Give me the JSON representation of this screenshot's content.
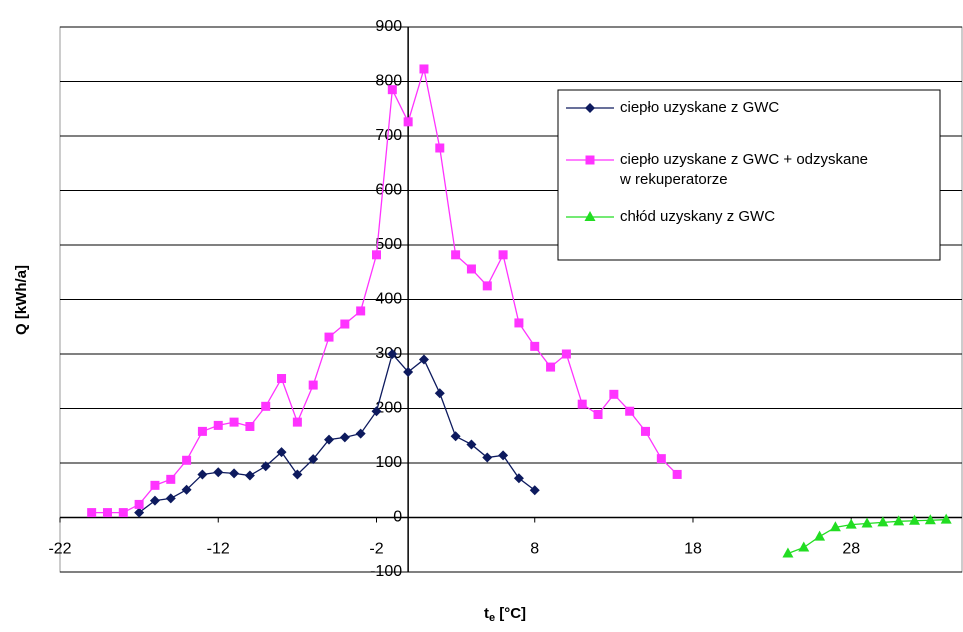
{
  "chart_data": {
    "type": "line",
    "y_label": "Q [kWh/a]",
    "x_label": "t",
    "x_label_sub": "e",
    "x_label_unit": " [°C]",
    "xlim": [
      -22,
      35
    ],
    "xticks": [
      -22,
      -12,
      -2,
      8,
      18,
      28
    ],
    "ylim": [
      -100,
      900
    ],
    "yticks": [
      -100,
      0,
      100,
      200,
      300,
      400,
      500,
      600,
      700,
      800,
      900
    ],
    "grid": true,
    "legend": "upper right",
    "series": [
      {
        "name": "ciepło uzyskane z GWC",
        "color": "#0d1a5e",
        "marker": "diamond",
        "x": [
          -17,
          -16,
          -15,
          -14,
          -13,
          -12,
          -11,
          -10,
          -9,
          -8,
          -7,
          -6,
          -5,
          -4,
          -3,
          -2,
          -1,
          0,
          1,
          2,
          3,
          4,
          5,
          6,
          7,
          8
        ],
        "values": [
          9,
          31,
          35,
          51,
          79,
          83,
          81,
          77,
          94,
          120,
          79,
          107,
          143,
          147,
          154,
          195,
          300,
          267,
          290,
          228,
          149,
          134,
          110,
          114,
          72,
          50
        ]
      },
      {
        "name": "ciepło uzyskane z GWC + odzyskane\nw rekuperatorze",
        "color": "#ff33ff",
        "marker": "square",
        "x": [
          -20,
          -19,
          -18,
          -17,
          -16,
          -15,
          -14,
          -13,
          -12,
          -11,
          -10,
          -9,
          -8,
          -7,
          -6,
          -5,
          -4,
          -3,
          -2,
          -1,
          0,
          1,
          2,
          3,
          4,
          5,
          6,
          7,
          8,
          9,
          10,
          11,
          12,
          13,
          14,
          15,
          16,
          17
        ],
        "values": [
          9,
          9,
          9,
          24,
          59,
          70,
          105,
          158,
          169,
          175,
          167,
          204,
          255,
          175,
          243,
          331,
          355,
          379,
          482,
          785,
          726,
          823,
          678,
          482,
          456,
          425,
          482,
          357,
          314,
          276,
          300,
          208,
          189,
          226,
          195,
          158,
          108,
          79
        ]
      },
      {
        "name": "chłód uzyskany z GWC",
        "color": "#22dd22",
        "marker": "triangle",
        "x": [
          24,
          25,
          26,
          27,
          28,
          29,
          30,
          31,
          32,
          33,
          34
        ],
        "values": [
          -66,
          -55,
          -35,
          -18,
          -13,
          -11,
          -9,
          -7,
          -6,
          -5,
          -4
        ]
      }
    ]
  }
}
